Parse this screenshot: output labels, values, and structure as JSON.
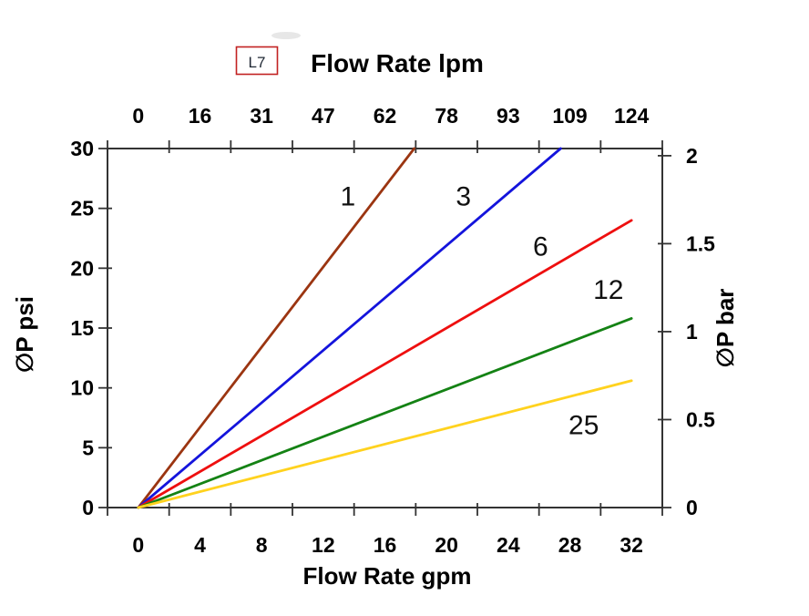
{
  "header": {
    "badge": "L7",
    "title": "Flow Rate lpm"
  },
  "chart_data": {
    "type": "line",
    "title": "Flow Rate lpm",
    "xlabel_top": "Flow Rate lpm",
    "xlabel_bottom": "Flow Rate gpm",
    "ylabel_left": "∅P psi",
    "ylabel_right": "∅P bar",
    "xlim": [
      -2,
      34
    ],
    "ylim": [
      0,
      30
    ],
    "psi_per_bar": 14.7,
    "grid": false,
    "legend_position": "inline-labels-on-lines",
    "axis_color": "#333333",
    "x_tick_positions": [
      -2,
      2,
      6,
      10,
      14,
      18,
      22,
      26,
      30,
      34
    ],
    "x_label_positions": [
      0,
      4,
      8,
      12,
      16,
      20,
      24,
      28,
      32
    ],
    "x_labels_bottom": [
      "0",
      "4",
      "8",
      "12",
      "16",
      "20",
      "24",
      "28",
      "32"
    ],
    "x_labels_top": [
      "0",
      "16",
      "31",
      "47",
      "62",
      "78",
      "93",
      "109",
      "124"
    ],
    "y_ticks_left": [
      0,
      5,
      10,
      15,
      20,
      25,
      30
    ],
    "y_labels_left": [
      "0",
      "5",
      "10",
      "15",
      "20",
      "25",
      "30"
    ],
    "y_ticks_right_bar": [
      0,
      0.5,
      1,
      1.5,
      2
    ],
    "y_labels_right": [
      "0",
      "0.5",
      "1",
      "1.5",
      "2"
    ],
    "series": [
      {
        "name": "1",
        "color": "#9B3511",
        "points": [
          [
            0,
            0
          ],
          [
            17.9,
            30
          ]
        ],
        "label_at": [
          13.6,
          26.0
        ]
      },
      {
        "name": "3",
        "color": "#1414DC",
        "points": [
          [
            0,
            0
          ],
          [
            27.4,
            30
          ]
        ],
        "label_at": [
          21.1,
          26.0
        ]
      },
      {
        "name": "6",
        "color": "#EE0F0F",
        "points": [
          [
            0,
            0
          ],
          [
            32,
            24.0
          ]
        ],
        "label_at": [
          26.1,
          21.8
        ]
      },
      {
        "name": "12",
        "color": "#148214",
        "points": [
          [
            0,
            0
          ],
          [
            32,
            15.8
          ]
        ],
        "label_at": [
          30.5,
          18.2
        ]
      },
      {
        "name": "25",
        "color": "#FFD21E",
        "points": [
          [
            0,
            0
          ],
          [
            32,
            10.6
          ]
        ],
        "label_at": [
          28.9,
          6.9
        ]
      }
    ]
  }
}
